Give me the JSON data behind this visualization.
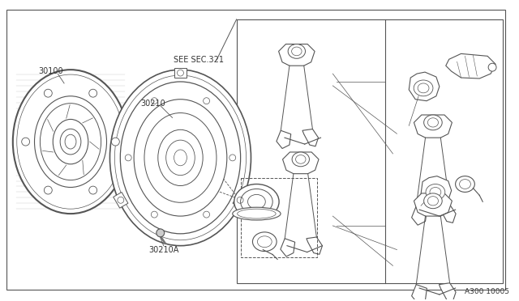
{
  "bg_color": "#ffffff",
  "line_color": "#555555",
  "text_color": "#333333",
  "diagram_id": "A300 10005",
  "figsize": [
    6.4,
    3.72
  ],
  "dpi": 100
}
